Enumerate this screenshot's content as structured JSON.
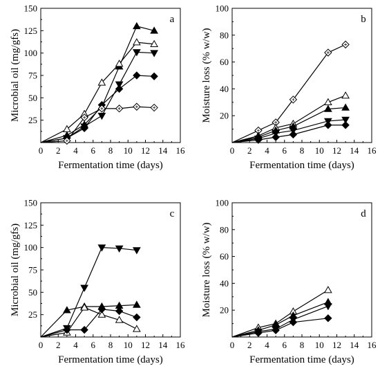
{
  "chart_data": [
    {
      "panel_label": "a",
      "type": "line",
      "xlabel": "Fermentation time (days)",
      "ylabel": "Microbial oil (mg/gfs)",
      "xlim": [
        0,
        16
      ],
      "ylim": [
        0,
        150
      ],
      "xticks": [
        0,
        2,
        4,
        6,
        8,
        10,
        12,
        14,
        16
      ],
      "yticks": [
        25,
        50,
        75,
        100,
        125,
        150
      ],
      "grid": false,
      "series": [
        {
          "marker": "triangle-up-filled",
          "x": [
            0,
            3,
            5,
            7,
            9,
            11,
            13
          ],
          "y": [
            0,
            8,
            20,
            40,
            85,
            130,
            125
          ]
        },
        {
          "marker": "triangle-up-open",
          "x": [
            0,
            3,
            5,
            7,
            9,
            11,
            13
          ],
          "y": [
            0,
            15,
            32,
            67,
            88,
            112,
            110
          ]
        },
        {
          "marker": "triangle-down-filled",
          "x": [
            0,
            3,
            5,
            7,
            9,
            11,
            13
          ],
          "y": [
            0,
            5,
            18,
            30,
            65,
            101,
            100
          ]
        },
        {
          "marker": "diamond-filled",
          "x": [
            0,
            3,
            5,
            7,
            9,
            11,
            13
          ],
          "y": [
            0,
            5,
            16,
            42,
            60,
            75,
            74
          ]
        },
        {
          "marker": "diamond-open",
          "x": [
            0,
            3,
            5,
            7,
            9,
            11,
            13
          ],
          "y": [
            0,
            2,
            28,
            38,
            38,
            40,
            39
          ]
        }
      ]
    },
    {
      "panel_label": "b",
      "type": "line",
      "xlabel": "Fermentation time (days)",
      "ylabel": "Moisture loss (% w/w)",
      "xlim": [
        0,
        16
      ],
      "ylim": [
        0,
        100
      ],
      "xticks": [
        0,
        2,
        4,
        6,
        8,
        10,
        12,
        14,
        16
      ],
      "yticks": [
        20,
        40,
        60,
        80,
        100
      ],
      "grid": false,
      "series": [
        {
          "marker": "diamond-open",
          "x": [
            0,
            3,
            5,
            7,
            11,
            13
          ],
          "y": [
            0,
            9,
            15,
            32,
            67,
            73
          ]
        },
        {
          "marker": "triangle-up-open",
          "x": [
            0,
            3,
            5,
            7,
            11,
            13
          ],
          "y": [
            0,
            5,
            11,
            14,
            30,
            35
          ]
        },
        {
          "marker": "triangle-up-filled",
          "x": [
            0,
            3,
            5,
            7,
            11,
            13
          ],
          "y": [
            0,
            4,
            9,
            12,
            25,
            26
          ]
        },
        {
          "marker": "triangle-down-filled",
          "x": [
            0,
            3,
            5,
            7,
            11,
            13
          ],
          "y": [
            0,
            3,
            7,
            9,
            16,
            17
          ]
        },
        {
          "marker": "diamond-filled",
          "x": [
            0,
            3,
            5,
            7,
            11,
            13
          ],
          "y": [
            0,
            2,
            4,
            6,
            13,
            13
          ]
        }
      ]
    },
    {
      "panel_label": "c",
      "type": "line",
      "xlabel": "Fermentation time (days)",
      "ylabel": "Microbial oil (mg/gfs)",
      "xlim": [
        0,
        16
      ],
      "ylim": [
        0,
        150
      ],
      "xticks": [
        0,
        2,
        4,
        6,
        8,
        10,
        12,
        14,
        16
      ],
      "yticks": [
        25,
        50,
        75,
        100,
        125,
        150
      ],
      "grid": false,
      "series": [
        {
          "marker": "triangle-down-filled",
          "x": [
            0,
            3,
            5,
            7,
            9,
            11
          ],
          "y": [
            0,
            10,
            55,
            100,
            99,
            97
          ]
        },
        {
          "marker": "triangle-up-filled",
          "x": [
            0,
            3,
            5,
            7,
            9,
            11
          ],
          "y": [
            0,
            30,
            34,
            34,
            35,
            36
          ]
        },
        {
          "marker": "triangle-up-open",
          "x": [
            0,
            3,
            5,
            7,
            9,
            11
          ],
          "y": [
            0,
            5,
            33,
            25,
            19,
            9
          ]
        },
        {
          "marker": "diamond-filled",
          "x": [
            0,
            3,
            5,
            7,
            9,
            11
          ],
          "y": [
            0,
            8,
            8,
            31,
            29,
            22
          ]
        }
      ]
    },
    {
      "panel_label": "d",
      "type": "line",
      "xlabel": "Fermentation time (days)",
      "ylabel": "Moisture loss (% w/w)",
      "xlim": [
        0,
        16
      ],
      "ylim": [
        0,
        100
      ],
      "xticks": [
        0,
        2,
        4,
        6,
        8,
        10,
        12,
        14,
        16
      ],
      "yticks": [
        20,
        40,
        60,
        80,
        100
      ],
      "grid": false,
      "series": [
        {
          "marker": "triangle-up-open",
          "x": [
            0,
            3,
            5,
            7,
            11
          ],
          "y": [
            0,
            7,
            10,
            19,
            35
          ]
        },
        {
          "marker": "triangle-up-filled",
          "x": [
            0,
            3,
            5,
            7,
            11
          ],
          "y": [
            0,
            5,
            9,
            16,
            26
          ]
        },
        {
          "marker": "triangle-down-filled",
          "x": [
            0,
            3,
            5,
            7,
            11
          ],
          "y": [
            0,
            4,
            6,
            13,
            23
          ]
        },
        {
          "marker": "diamond-filled",
          "x": [
            0,
            3,
            5,
            7,
            11
          ],
          "y": [
            0,
            3,
            5,
            11,
            14
          ]
        }
      ]
    }
  ]
}
